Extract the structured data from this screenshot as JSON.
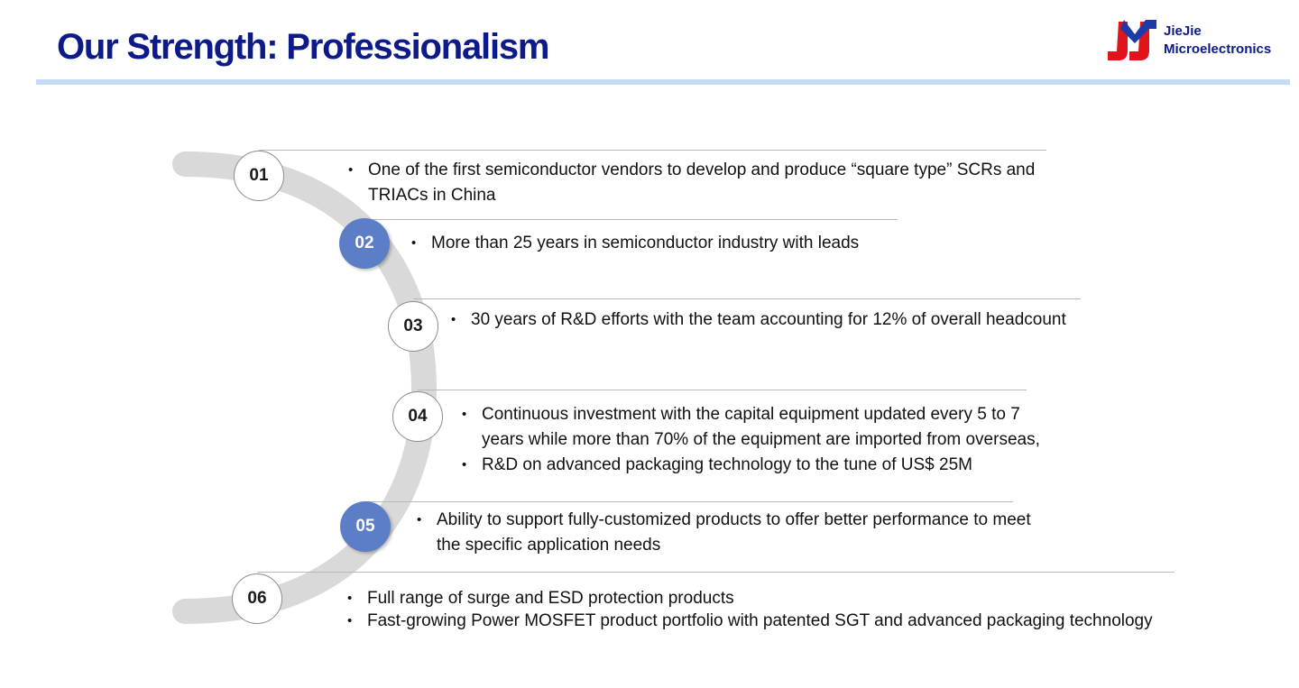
{
  "header": {
    "title": "Our Strength: Professionalism",
    "logo_line1": "JieJie",
    "logo_line2": "Microelectronics"
  },
  "items": [
    {
      "number": "01",
      "bullets": [
        "One of the first semiconductor vendors to develop and produce “square type” SCRs and TRIACs in China"
      ]
    },
    {
      "number": "02",
      "bullets": [
        "More than 25 years in semiconductor industry with leads"
      ]
    },
    {
      "number": "03",
      "bullets": [
        "30 years of R&D efforts with the team accounting for 12% of overall headcount"
      ]
    },
    {
      "number": "04",
      "bullets": [
        "Continuous investment with the capital equipment updated every 5 to 7 years while more than 70% of the equipment are imported from overseas,",
        "R&D on advanced packaging technology to the tune of US$ 25M"
      ]
    },
    {
      "number": "05",
      "bullets": [
        "Ability to support fully-customized products to offer better performance to meet the specific application needs"
      ]
    },
    {
      "number": "06",
      "bullets": [
        "Full range of surge and ESD protection products",
        "Fast-growing Power MOSFET product portfolio with patented SGT and advanced packaging technology"
      ]
    }
  ]
}
